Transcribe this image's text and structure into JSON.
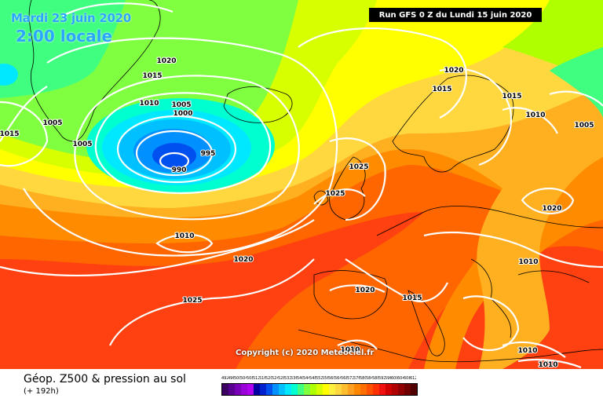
{
  "header": {
    "date": "Mardi 23 juin 2020",
    "time": "2:00 locale",
    "run": "Run GFS 0 Z du Lundi 15 juin 2020"
  },
  "copyright": "Copyright (c) 2020 Meteociel.fr",
  "footer": {
    "product": "Géop. Z500 & pression au sol",
    "lead_time": "(+ 192h)"
  },
  "legend": {
    "values": [
      "492",
      "496",
      "500",
      "504",
      "508",
      "512",
      "516",
      "520",
      "524",
      "528",
      "532",
      "536",
      "540",
      "544",
      "548",
      "552",
      "556",
      "560",
      "564",
      "568",
      "572",
      "576",
      "580",
      "584",
      "588",
      "592",
      "596",
      "600",
      "604",
      "608",
      "612"
    ],
    "colors": [
      "#3c0060",
      "#5a0090",
      "#7a00b8",
      "#9a00d8",
      "#b000f0",
      "#0000a0",
      "#0020d0",
      "#0050f0",
      "#0090ff",
      "#00c0ff",
      "#00e8ff",
      "#00ffd0",
      "#40ff80",
      "#80ff40",
      "#b0ff00",
      "#d8ff00",
      "#ffff00",
      "#fff040",
      "#ffd840",
      "#ffbe30",
      "#ffa020",
      "#ff8800",
      "#ff6e00",
      "#ff5000",
      "#ff3000",
      "#f01010",
      "#d00000",
      "#b00000",
      "#900000",
      "#700000",
      "#500000"
    ]
  },
  "isobar_labels": [
    {
      "text": "1020"
    },
    {
      "text": "1015"
    },
    {
      "text": "1010"
    },
    {
      "text": "1005"
    },
    {
      "text": "1000"
    },
    {
      "text": "1005"
    },
    {
      "text": "1005"
    },
    {
      "text": "1015"
    },
    {
      "text": "995"
    },
    {
      "text": "990"
    },
    {
      "text": "1010"
    },
    {
      "text": "1020"
    },
    {
      "text": "1025"
    },
    {
      "text": "1025"
    },
    {
      "text": "1025"
    },
    {
      "text": "1020"
    },
    {
      "text": "1015"
    },
    {
      "text": "1015"
    },
    {
      "text": "1010"
    },
    {
      "text": "1005"
    },
    {
      "text": "1020"
    },
    {
      "text": "1010"
    },
    {
      "text": "1020"
    },
    {
      "text": "1015"
    },
    {
      "text": "1010"
    },
    {
      "text": "1010"
    },
    {
      "text": "1010"
    }
  ]
}
